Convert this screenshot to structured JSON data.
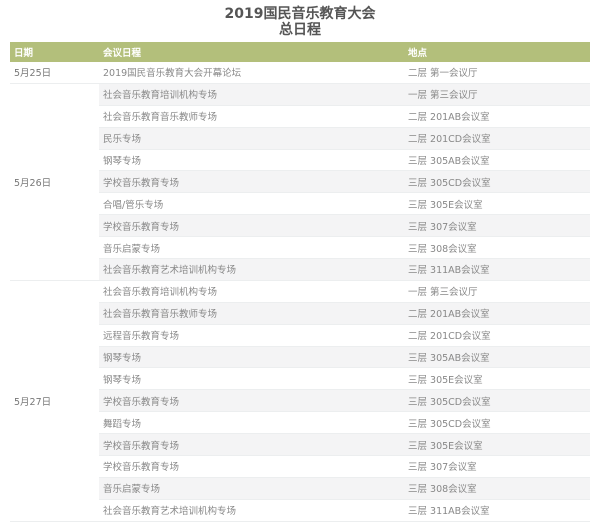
{
  "title_line1": "2019国民音乐教育大会",
  "title_line2": "总日程",
  "header": {
    "date": "日期",
    "session": "会议日程",
    "location": "地点"
  },
  "colors": {
    "header_bg": "#b3bf7b",
    "stripe": "#f4f4f5"
  },
  "days": [
    {
      "date": "5月25日",
      "rows": [
        {
          "session": "2019国民音乐教育大会开幕论坛",
          "location": "二层 第一会议厅"
        }
      ]
    },
    {
      "date": "5月26日",
      "rows": [
        {
          "session": "社会音乐教育培训机构专场",
          "location": "一层 第三会议厅"
        },
        {
          "session": "社会音乐教育音乐教师专场",
          "location": "二层 201AB会议室"
        },
        {
          "session": "民乐专场",
          "location": "二层 201CD会议室"
        },
        {
          "session": "钢琴专场",
          "location": "三层 305AB会议室"
        },
        {
          "session": "学校音乐教育专场",
          "location": "三层 305CD会议室"
        },
        {
          "session": "合唱/管乐专场",
          "location": "三层 305E会议室"
        },
        {
          "session": "学校音乐教育专场",
          "location": "三层 307会议室"
        },
        {
          "session": "音乐启蒙专场",
          "location": "三层 308会议室"
        },
        {
          "session": "社会音乐教育艺术培训机构专场",
          "location": "三层 311AB会议室"
        }
      ]
    },
    {
      "date": "5月27日",
      "rows": [
        {
          "session": "社会音乐教育培训机构专场",
          "location": "一层 第三会议厅"
        },
        {
          "session": "社会音乐教育音乐教师专场",
          "location": "二层 201AB会议室"
        },
        {
          "session": "远程音乐教育专场",
          "location": "二层 201CD会议室"
        },
        {
          "session": "钢琴专场",
          "location": "三层 305AB会议室"
        },
        {
          "session": "钢琴专场",
          "location": "三层 305E会议室"
        },
        {
          "session": "学校音乐教育专场",
          "location": "三层 305CD会议室"
        },
        {
          "session": "舞蹈专场",
          "location": "三层 305CD会议室"
        },
        {
          "session": "学校音乐教育专场",
          "location": "三层 305E会议室"
        },
        {
          "session": "学校音乐教育专场",
          "location": "三层 307会议室"
        },
        {
          "session": "音乐启蒙专场",
          "location": "三层 308会议室"
        },
        {
          "session": "社会音乐教育艺术培训机构专场",
          "location": "三层 311AB会议室"
        }
      ]
    }
  ]
}
